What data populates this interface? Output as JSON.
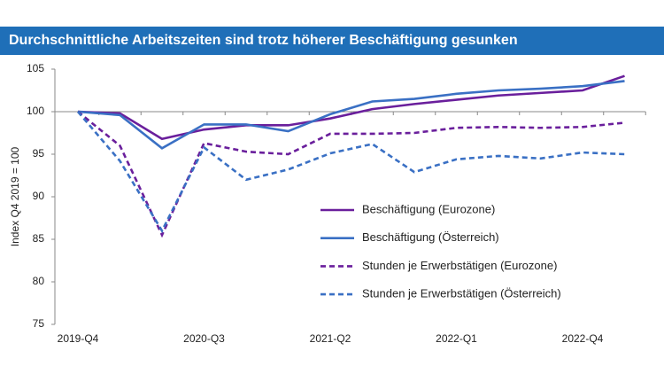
{
  "chart_data": {
    "type": "line",
    "title": "Durchschnittliche Arbeitszeiten sind trotz höherer Beschäftigung gesunken",
    "y_label": "Index Q4 2019 = 100",
    "categories": [
      "2019-Q4",
      null,
      null,
      "2020-Q3",
      null,
      null,
      "2021-Q2",
      null,
      null,
      "2022-Q1",
      null,
      null,
      "2022-Q4",
      null
    ],
    "ylim": [
      75,
      105
    ],
    "yticks": [
      75,
      80,
      85,
      90,
      95,
      100,
      105
    ],
    "x_axis_at": 100,
    "series": [
      {
        "name": "Beschäftigung (Eurozone)",
        "color": "#6a1f9c",
        "dashed": false,
        "values": [
          100,
          99.8,
          96.8,
          97.9,
          98.4,
          98.4,
          99.2,
          100.3,
          100.9,
          101.4,
          101.9,
          102.2,
          102.5,
          104.2
        ]
      },
      {
        "name": "Beschäftigung  (Österreich)",
        "color": "#3a70c4",
        "dashed": false,
        "values": [
          100,
          99.6,
          95.7,
          98.5,
          98.5,
          97.7,
          99.7,
          101.2,
          101.5,
          102.1,
          102.5,
          102.7,
          103.0,
          103.6
        ]
      },
      {
        "name": "Stunden je Erwerbstätigen (Eurozone)",
        "color": "#6a1f9c",
        "dashed": true,
        "values": [
          100,
          96.0,
          85.5,
          96.3,
          95.3,
          95.0,
          97.4,
          97.4,
          97.5,
          98.1,
          98.2,
          98.1,
          98.2,
          98.7
        ]
      },
      {
        "name": "Stunden je Erwerbstätigen (Österreich)",
        "color": "#3a70c4",
        "dashed": true,
        "values": [
          100,
          94.2,
          86.0,
          95.8,
          92.0,
          93.2,
          95.1,
          96.2,
          92.9,
          94.4,
          94.8,
          94.5,
          95.2,
          95.0
        ]
      }
    ]
  }
}
